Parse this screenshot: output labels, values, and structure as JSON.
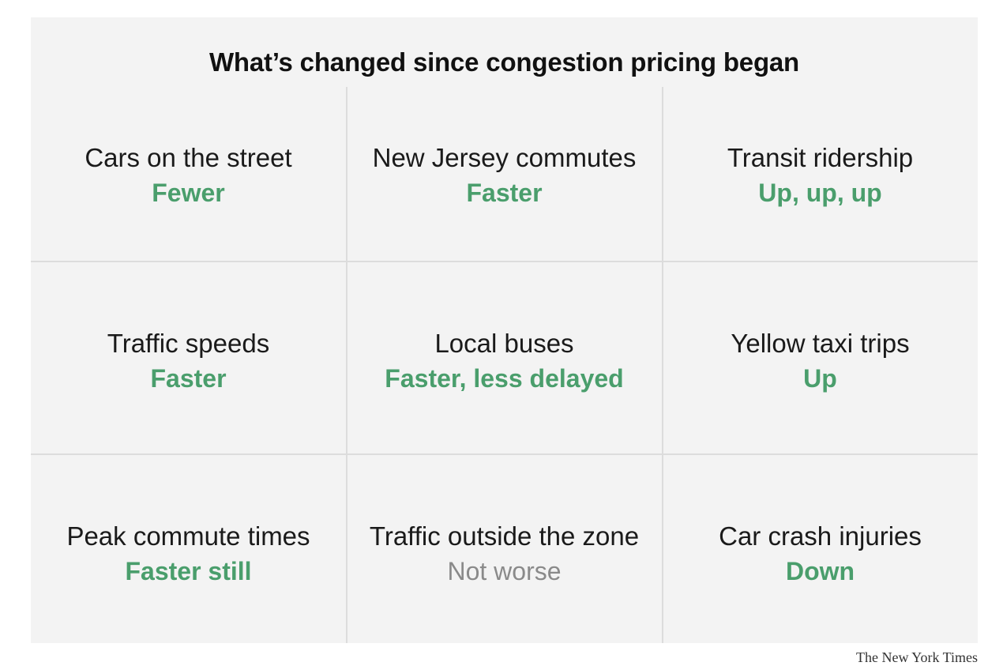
{
  "title": "What’s changed since congestion pricing began",
  "colors": {
    "positive": "#4a9e6c",
    "neutral": "#8a8a8a",
    "panel_background": "#f3f3f3",
    "divider": "#dcdcdc"
  },
  "cells": [
    {
      "label": "Cars on the street",
      "value": "Fewer",
      "tone": "positive"
    },
    {
      "label": "New Jersey commutes",
      "value": "Faster",
      "tone": "positive"
    },
    {
      "label": "Transit ridership",
      "value": "Up, up, up",
      "tone": "positive"
    },
    {
      "label": "Traffic speeds",
      "value": "Faster",
      "tone": "positive"
    },
    {
      "label": "Local buses",
      "value": "Faster, less delayed",
      "tone": "positive"
    },
    {
      "label": "Yellow taxi trips",
      "value": "Up",
      "tone": "positive"
    },
    {
      "label": "Peak commute times",
      "value": "Faster still",
      "tone": "positive"
    },
    {
      "label": "Traffic outside the zone",
      "value": "Not worse",
      "tone": "neutral"
    },
    {
      "label": "Car crash injuries",
      "value": "Down",
      "tone": "positive"
    }
  ],
  "credit": "The New York Times"
}
